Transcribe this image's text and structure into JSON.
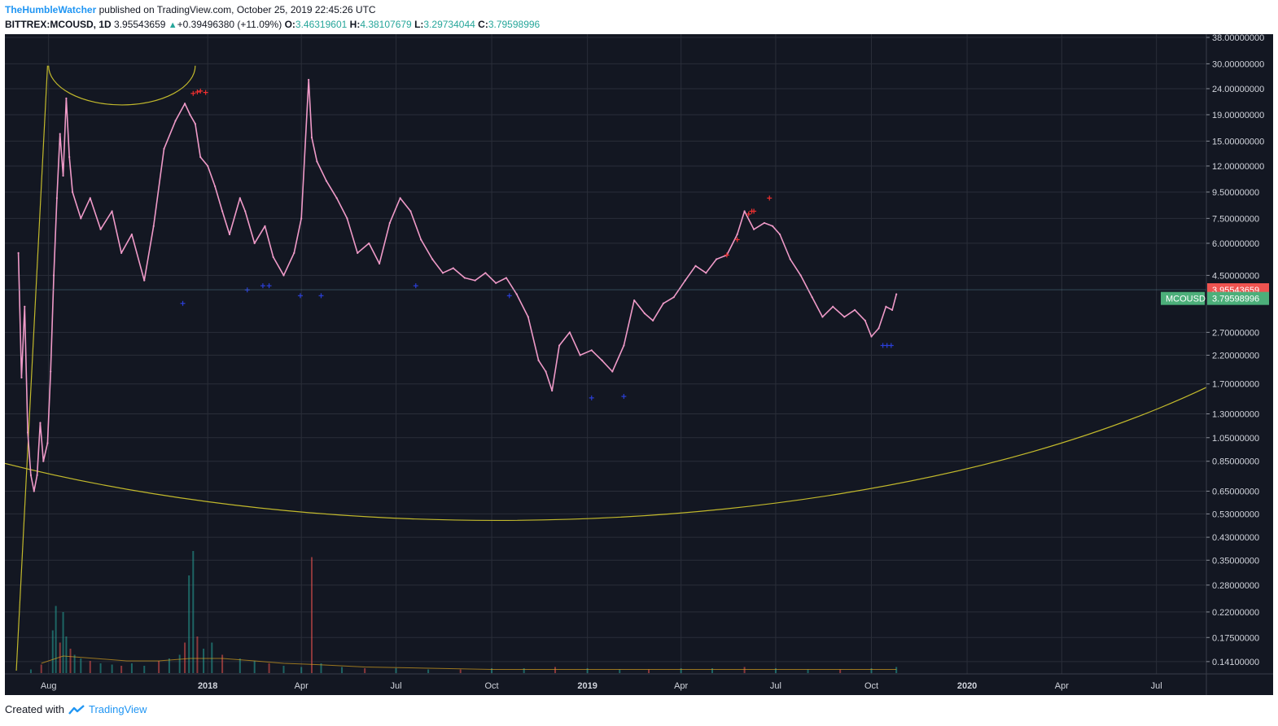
{
  "header": {
    "author": "TheHumbleWatcher",
    "published": "published on TradingView.com, October 25, 2019 22:45:26 UTC",
    "symbol": "BITTREX:MCOUSD, 1D",
    "last": "3.95543659",
    "change_arrow": "▲",
    "change": "+0.39496380 (+11.09%)",
    "o_label": "O:",
    "o_value": "3.46319601",
    "h_label": "H:",
    "h_value": "4.38107679",
    "l_label": "L:",
    "l_value": "3.29734044",
    "c_label": "C:",
    "c_value": "3.79598996"
  },
  "footer": {
    "created_with": "Created with",
    "brand": "TradingView"
  },
  "colors": {
    "background": "#131722",
    "grid": "#2a2e39",
    "candle": "#ef9ac8",
    "ellipse": "#c2b92c",
    "up_volume": "#26a69a",
    "down_volume": "#ef5350",
    "marker_red": "#ef3030",
    "marker_blue": "#2b3fd8",
    "label_red": "#ef5350",
    "label_green": "#4caf7a"
  },
  "chart_data": {
    "type": "line",
    "scale": "log",
    "ylim": [
      0.13,
      38.0
    ],
    "xlim": [
      "2017-06-20",
      "2020-08-18"
    ],
    "x_ticks": [
      {
        "date": "2017-08-01",
        "label": "Aug"
      },
      {
        "date": "2018-01-01",
        "label": "2018"
      },
      {
        "date": "2018-04-01",
        "label": "Apr"
      },
      {
        "date": "2018-07-01",
        "label": "Jul"
      },
      {
        "date": "2018-10-01",
        "label": "Oct"
      },
      {
        "date": "2019-01-01",
        "label": "2019"
      },
      {
        "date": "2019-04-01",
        "label": "Apr"
      },
      {
        "date": "2019-07-01",
        "label": "Jul"
      },
      {
        "date": "2019-10-01",
        "label": "Oct"
      },
      {
        "date": "2020-01-01",
        "label": "2020"
      },
      {
        "date": "2020-04-01",
        "label": "Apr"
      },
      {
        "date": "2020-07-01",
        "label": "Jul"
      }
    ],
    "y_ticks": [
      {
        "value": 38,
        "label": "38.00000000"
      },
      {
        "value": 30,
        "label": "30.00000000"
      },
      {
        "value": 24,
        "label": "24.00000000"
      },
      {
        "value": 19,
        "label": "19.00000000"
      },
      {
        "value": 15,
        "label": "15.00000000"
      },
      {
        "value": 12,
        "label": "12.00000000"
      },
      {
        "value": 9.5,
        "label": "9.50000000"
      },
      {
        "value": 7.5,
        "label": "7.50000000"
      },
      {
        "value": 6,
        "label": "6.00000000"
      },
      {
        "value": 4.5,
        "label": "4.50000000"
      },
      {
        "value": 2.7,
        "label": "2.70000000"
      },
      {
        "value": 2.2,
        "label": "2.20000000"
      },
      {
        "value": 1.7,
        "label": "1.70000000"
      },
      {
        "value": 1.3,
        "label": "1.30000000"
      },
      {
        "value": 1.05,
        "label": "1.05000000"
      },
      {
        "value": 0.85,
        "label": "0.85000000"
      },
      {
        "value": 0.65,
        "label": "0.65000000"
      },
      {
        "value": 0.53,
        "label": "0.53000000"
      },
      {
        "value": 0.43,
        "label": "0.43000000"
      },
      {
        "value": 0.35,
        "label": "0.35000000"
      },
      {
        "value": 0.28,
        "label": "0.28000000"
      },
      {
        "value": 0.22,
        "label": "0.22000000"
      },
      {
        "value": 0.175,
        "label": "0.17500000"
      },
      {
        "value": 0.141,
        "label": "0.14100000"
      }
    ],
    "price_labels": [
      {
        "value": 3.95543659,
        "label": "3.95543659",
        "color": "red"
      },
      {
        "value": 3.79598996,
        "label": "3.79598996",
        "color": "green",
        "tag": "MCOUSD"
      }
    ],
    "series": [
      {
        "name": "MCOUSD",
        "x": [
          "2017-07-03",
          "2017-07-06",
          "2017-07-09",
          "2017-07-12",
          "2017-07-15",
          "2017-07-18",
          "2017-07-21",
          "2017-07-24",
          "2017-07-27",
          "2017-07-31",
          "2017-08-03",
          "2017-08-06",
          "2017-08-09",
          "2017-08-12",
          "2017-08-15",
          "2017-08-18",
          "2017-08-21",
          "2017-08-24",
          "2017-09-01",
          "2017-09-10",
          "2017-09-20",
          "2017-10-01",
          "2017-10-10",
          "2017-10-20",
          "2017-11-01",
          "2017-11-10",
          "2017-11-20",
          "2017-12-01",
          "2017-12-10",
          "2017-12-15",
          "2017-12-20",
          "2017-12-25",
          "2018-01-01",
          "2018-01-08",
          "2018-01-15",
          "2018-01-22",
          "2018-02-01",
          "2018-02-06",
          "2018-02-15",
          "2018-02-25",
          "2018-03-05",
          "2018-03-15",
          "2018-03-25",
          "2018-04-01",
          "2018-04-08",
          "2018-04-11",
          "2018-04-16",
          "2018-04-25",
          "2018-05-05",
          "2018-05-15",
          "2018-05-25",
          "2018-06-05",
          "2018-06-15",
          "2018-06-25",
          "2018-07-05",
          "2018-07-15",
          "2018-07-25",
          "2018-08-05",
          "2018-08-15",
          "2018-08-25",
          "2018-09-05",
          "2018-09-15",
          "2018-09-25",
          "2018-10-05",
          "2018-10-15",
          "2018-10-25",
          "2018-11-05",
          "2018-11-15",
          "2018-11-22",
          "2018-11-28",
          "2018-12-05",
          "2018-12-15",
          "2018-12-25",
          "2019-01-05",
          "2019-01-15",
          "2019-01-25",
          "2019-02-05",
          "2019-02-15",
          "2019-02-25",
          "2019-03-05",
          "2019-03-15",
          "2019-03-25",
          "2019-04-05",
          "2019-04-15",
          "2019-04-25",
          "2019-05-05",
          "2019-05-15",
          "2019-05-25",
          "2019-06-01",
          "2019-06-10",
          "2019-06-20",
          "2019-06-28",
          "2019-07-05",
          "2019-07-15",
          "2019-07-25",
          "2019-08-05",
          "2019-08-15",
          "2019-08-25",
          "2019-09-05",
          "2019-09-15",
          "2019-09-25",
          "2019-10-01",
          "2019-10-08",
          "2019-10-15",
          "2019-10-21",
          "2019-10-25"
        ],
        "y": [
          5.5,
          1.8,
          3.4,
          1.1,
          0.75,
          0.65,
          0.75,
          1.2,
          0.85,
          1.0,
          1.9,
          4.5,
          9.0,
          16.0,
          11.0,
          22.0,
          13.0,
          9.5,
          7.5,
          9.0,
          6.8,
          8.0,
          5.5,
          6.5,
          4.3,
          7.0,
          14.0,
          18.0,
          21.0,
          19.0,
          17.5,
          13.0,
          12.0,
          10.0,
          8.0,
          6.5,
          9.0,
          8.0,
          6.0,
          7.0,
          5.3,
          4.5,
          5.5,
          7.5,
          26.0,
          15.5,
          12.5,
          10.5,
          9.0,
          7.5,
          5.5,
          6.0,
          5.0,
          7.2,
          9.0,
          8.0,
          6.2,
          5.2,
          4.6,
          4.8,
          4.4,
          4.3,
          4.6,
          4.2,
          4.4,
          3.8,
          3.1,
          2.1,
          1.9,
          1.6,
          2.4,
          2.7,
          2.2,
          2.3,
          2.1,
          1.9,
          2.4,
          3.6,
          3.2,
          3.0,
          3.5,
          3.7,
          4.3,
          4.9,
          4.6,
          5.2,
          5.4,
          6.5,
          8.0,
          6.8,
          7.2,
          7.0,
          6.5,
          5.2,
          4.5,
          3.7,
          3.1,
          3.4,
          3.1,
          3.3,
          3.0,
          2.6,
          2.8,
          3.4,
          3.3,
          3.8
        ]
      }
    ],
    "markers": [
      {
        "type": "peak",
        "date": "2017-12-18",
        "value": 23.0
      },
      {
        "type": "peak",
        "date": "2017-12-22",
        "value": 23.3
      },
      {
        "type": "peak",
        "date": "2017-12-25",
        "value": 23.5
      },
      {
        "type": "peak",
        "date": "2017-12-30",
        "value": 23.2
      },
      {
        "type": "peak",
        "date": "2019-05-15",
        "value": 5.4
      },
      {
        "type": "peak",
        "date": "2019-05-25",
        "value": 6.2
      },
      {
        "type": "peak",
        "date": "2019-06-05",
        "value": 7.8
      },
      {
        "type": "peak",
        "date": "2019-06-08",
        "value": 8.0
      },
      {
        "type": "peak",
        "date": "2019-06-10",
        "value": 8.0
      },
      {
        "type": "peak",
        "date": "2019-06-25",
        "value": 9.0
      },
      {
        "type": "trough",
        "date": "2017-12-08",
        "value": 3.5
      },
      {
        "type": "trough",
        "date": "2018-02-08",
        "value": 3.95
      },
      {
        "type": "trough",
        "date": "2018-02-23",
        "value": 4.1
      },
      {
        "type": "trough",
        "date": "2018-03-01",
        "value": 4.1
      },
      {
        "type": "trough",
        "date": "2018-03-31",
        "value": 3.75
      },
      {
        "type": "trough",
        "date": "2018-04-20",
        "value": 3.75
      },
      {
        "type": "trough",
        "date": "2018-07-20",
        "value": 4.1
      },
      {
        "type": "trough",
        "date": "2018-10-18",
        "value": 3.75
      },
      {
        "type": "trough",
        "date": "2019-01-05",
        "value": 1.5
      },
      {
        "type": "trough",
        "date": "2019-02-05",
        "value": 1.52
      },
      {
        "type": "trough",
        "date": "2019-10-12",
        "value": 2.4
      },
      {
        "type": "trough",
        "date": "2019-10-16",
        "value": 2.4
      },
      {
        "type": "trough",
        "date": "2019-10-20",
        "value": 2.4
      }
    ],
    "drawings": {
      "ellipse": {
        "center_date": "2018-10-06",
        "center_value": 12.0,
        "semi_axis_days": 900,
        "peak_value": 480,
        "low_value": 0.5
      },
      "small_arc": {
        "start_date": "2017-08-01",
        "start_value": 29.5,
        "end_date": "2017-12-20",
        "end_value": 29.5,
        "low_value": 22.0
      },
      "trend_line": {
        "from_date": "2017-07-01",
        "from_value": 0.13,
        "to_date": "2017-07-31",
        "to_value": 29.5
      }
    },
    "volume": {
      "dates": [
        "2017-07-15",
        "2017-07-25",
        "2017-08-05",
        "2017-08-08",
        "2017-08-12",
        "2017-08-15",
        "2017-08-18",
        "2017-08-22",
        "2017-08-26",
        "2017-09-01",
        "2017-09-10",
        "2017-09-20",
        "2017-10-01",
        "2017-10-10",
        "2017-10-20",
        "2017-11-01",
        "2017-11-15",
        "2017-11-25",
        "2017-12-05",
        "2017-12-10",
        "2017-12-14",
        "2017-12-18",
        "2017-12-22",
        "2017-12-28",
        "2018-01-05",
        "2018-01-15",
        "2018-02-01",
        "2018-02-15",
        "2018-03-01",
        "2018-03-15",
        "2018-04-01",
        "2018-04-11",
        "2018-04-20",
        "2018-05-10",
        "2018-06-01",
        "2018-07-01",
        "2018-08-01",
        "2018-09-01",
        "2018-10-01",
        "2018-11-01",
        "2018-12-01",
        "2019-01-01",
        "2019-02-01",
        "2019-03-01",
        "2019-04-01",
        "2019-05-01",
        "2019-06-01",
        "2019-07-01",
        "2019-08-01",
        "2019-09-01",
        "2019-10-01",
        "2019-10-25"
      ],
      "values": [
        0.03,
        0.07,
        0.35,
        0.55,
        0.25,
        0.5,
        0.3,
        0.2,
        0.15,
        0.12,
        0.1,
        0.08,
        0.07,
        0.06,
        0.08,
        0.06,
        0.1,
        0.12,
        0.15,
        0.25,
        0.8,
        1.0,
        0.3,
        0.2,
        0.25,
        0.15,
        0.12,
        0.1,
        0.08,
        0.06,
        0.05,
        0.95,
        0.08,
        0.05,
        0.04,
        0.04,
        0.03,
        0.03,
        0.04,
        0.04,
        0.05,
        0.04,
        0.03,
        0.03,
        0.04,
        0.04,
        0.05,
        0.04,
        0.03,
        0.03,
        0.04,
        0.05
      ]
    },
    "volume_ma": {
      "dates": [
        "2017-07-25",
        "2017-08-15",
        "2017-09-15",
        "2017-10-15",
        "2017-11-15",
        "2017-12-15",
        "2018-01-15",
        "2018-02-15",
        "2018-03-15",
        "2018-04-15",
        "2018-06-01",
        "2018-08-01",
        "2018-10-01",
        "2019-01-01",
        "2019-06-01",
        "2019-10-25"
      ],
      "values": [
        0.08,
        0.14,
        0.12,
        0.1,
        0.1,
        0.12,
        0.12,
        0.1,
        0.08,
        0.07,
        0.05,
        0.04,
        0.03,
        0.03,
        0.03,
        0.03
      ]
    }
  }
}
